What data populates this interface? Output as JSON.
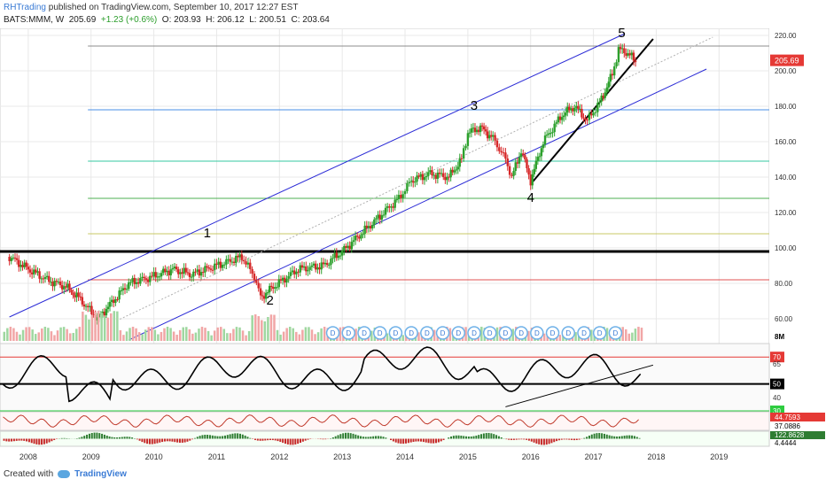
{
  "header": {
    "publisher": "RHTrading",
    "published_text": "published on TradingView.com, September 10, 2017 12:27 EST",
    "symbol": "BATS:MMM, W",
    "last": "205.69",
    "change": "+1.23 (+0.6%)",
    "open": "O: 203.93",
    "high": "H: 206.12",
    "low": "L: 200.51",
    "close": "C: 203.64"
  },
  "footer": {
    "created_with": "Created with",
    "brand": "TradingView"
  },
  "colors": {
    "up": "#2ca02c",
    "down": "#d62728",
    "channel": "#2b2bd6",
    "grid": "#e8e8e8"
  },
  "chart_data": {
    "type": "line",
    "title": "",
    "x_axis": {
      "ticks": [
        "2008",
        "2009",
        "2010",
        "2011",
        "2012",
        "2013",
        "2014",
        "2015",
        "2016",
        "2017",
        "2018",
        "2019"
      ]
    },
    "price_axis": {
      "ticks": [
        "220.00",
        "200.00",
        "180.00",
        "160.00",
        "140.00",
        "120.00",
        "100.00",
        "80.00",
        "60.00"
      ],
      "ylim": [
        48,
        224
      ]
    },
    "last_price_label": "205.69",
    "price_series": {
      "name": "",
      "points": [
        [
          2007.7,
          95
        ],
        [
          2008.0,
          88
        ],
        [
          2008.3,
          82
        ],
        [
          2008.6,
          78
        ],
        [
          2008.8,
          72
        ],
        [
          2009.1,
          60
        ],
        [
          2009.3,
          68
        ],
        [
          2009.6,
          80
        ],
        [
          2010.0,
          84
        ],
        [
          2010.3,
          88
        ],
        [
          2010.6,
          85
        ],
        [
          2011.0,
          90
        ],
        [
          2011.4,
          95
        ],
        [
          2011.6,
          84
        ],
        [
          2011.7,
          72
        ],
        [
          2011.9,
          78
        ],
        [
          2012.3,
          88
        ],
        [
          2012.7,
          90
        ],
        [
          2013.0,
          98
        ],
        [
          2013.3,
          108
        ],
        [
          2013.6,
          118
        ],
        [
          2013.9,
          128
        ],
        [
          2014.1,
          138
        ],
        [
          2014.4,
          142
        ],
        [
          2014.7,
          140
        ],
        [
          2014.9,
          150
        ],
        [
          2015.0,
          165
        ],
        [
          2015.2,
          168
        ],
        [
          2015.4,
          162
        ],
        [
          2015.6,
          150
        ],
        [
          2015.7,
          140
        ],
        [
          2015.85,
          155
        ],
        [
          2016.0,
          138
        ],
        [
          2016.2,
          160
        ],
        [
          2016.5,
          175
        ],
        [
          2016.7,
          180
        ],
        [
          2016.9,
          172
        ],
        [
          2017.1,
          182
        ],
        [
          2017.3,
          198
        ],
        [
          2017.4,
          212
        ],
        [
          2017.55,
          210
        ],
        [
          2017.7,
          204
        ]
      ]
    },
    "horizontal_levels": [
      {
        "value": 214,
        "color": "#8c8c8c"
      },
      {
        "value": 178,
        "color": "#4a8fe7"
      },
      {
        "value": 149,
        "color": "#36c9a0"
      },
      {
        "value": 128,
        "color": "#4caf50"
      },
      {
        "value": 108,
        "color": "#c8c864"
      },
      {
        "value": 98,
        "color": "#000000",
        "thick": true
      },
      {
        "value": 82,
        "color": "#e05050"
      }
    ],
    "channel_lines": [
      {
        "from": [
          2007.7,
          61
        ],
        "to": [
          2017.5,
          221
        ],
        "color": "#2b2bd6"
      },
      {
        "from": [
          2009.6,
          48
        ],
        "to": [
          2018.8,
          201
        ],
        "color": "#2b2bd6"
      },
      {
        "from": [
          2009.0,
          52
        ],
        "to": [
          2018.9,
          219
        ],
        "color": "#b0b0b0",
        "dotted": true
      },
      {
        "from": [
          2016.0,
          136
        ],
        "to": [
          2017.95,
          218
        ],
        "color": "#000000",
        "width": 2
      }
    ],
    "wave_labels": [
      {
        "label": "1",
        "x": 2010.85,
        "y": 106
      },
      {
        "label": "2",
        "x": 2011.85,
        "y": 68
      },
      {
        "label": "3",
        "x": 2015.1,
        "y": 178
      },
      {
        "label": "4",
        "x": 2016.0,
        "y": 126
      },
      {
        "label": "5",
        "x": 2017.45,
        "y": 219
      }
    ],
    "dividend_marker": "D",
    "dividend_count": 19,
    "volume_label": "8M",
    "rsi_panel": {
      "ticks": [
        "70",
        "65",
        "50",
        "40",
        "30"
      ],
      "levels": [
        70,
        50,
        30
      ]
    },
    "panel3_labels": [
      "44.7593",
      "37.0886"
    ],
    "panel4_labels": [
      "122.8628",
      "4.4444"
    ]
  }
}
